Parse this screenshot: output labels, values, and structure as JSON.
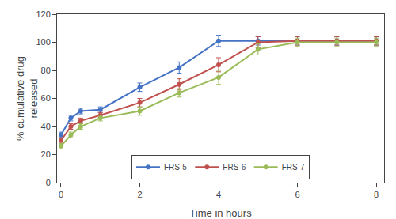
{
  "chart_data": {
    "type": "line",
    "xlabel": "Time in hours",
    "ylabel": "% cumulative drug\nreleased",
    "x": [
      0,
      0.25,
      0.5,
      1,
      2,
      3,
      4,
      5,
      6,
      7,
      8
    ],
    "xlim": [
      -0.1,
      8.2
    ],
    "xticks": [
      0,
      2,
      4,
      6,
      8
    ],
    "ylim": [
      0,
      120
    ],
    "yticks": [
      0,
      20,
      40,
      60,
      80,
      100,
      120
    ],
    "marker": "circle",
    "grid": false,
    "legend": "lower center",
    "series": [
      {
        "name": "FRS-5",
        "color": "#4472C4",
        "values": [
          34,
          46,
          51,
          52,
          68,
          82,
          101,
          101,
          101,
          101,
          101
        ],
        "yerr": [
          2,
          2,
          2,
          2,
          3,
          4,
          4,
          3,
          3,
          3,
          3
        ]
      },
      {
        "name": "FRS-6",
        "color": "#C0504D",
        "values": [
          30,
          40,
          44,
          48,
          57,
          70,
          84,
          100,
          101,
          101,
          101
        ],
        "yerr": [
          2,
          2,
          2,
          2,
          3,
          4,
          5,
          4,
          3,
          3,
          3
        ]
      },
      {
        "name": "FRS-7",
        "color": "#9BBB59",
        "values": [
          26,
          34,
          40,
          46,
          51,
          64,
          75,
          95,
          100,
          100,
          100
        ],
        "yerr": [
          2,
          2,
          2,
          2,
          3,
          3,
          5,
          4,
          3,
          3,
          3
        ]
      }
    ]
  }
}
